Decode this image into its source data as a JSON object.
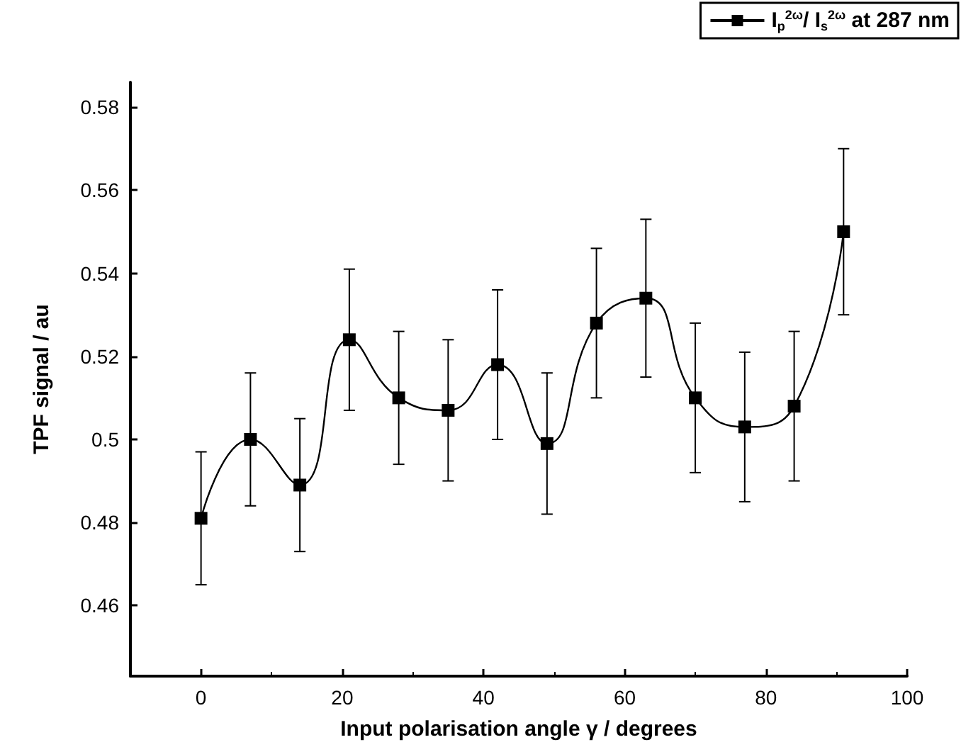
{
  "chart_data": {
    "type": "line",
    "xlabel": "Input polarisation angle γ / degrees",
    "ylabel": "TPF signal / au",
    "x": [
      0,
      7,
      14,
      21,
      28,
      35,
      42,
      49,
      56,
      63,
      70,
      77,
      84,
      91
    ],
    "series": [
      {
        "name": "I$_{p}$$^{2ω}$/ I$_{s}$$^{2ω}$ at 287 nm",
        "color": "#000000",
        "values": [
          0.481,
          0.5,
          0.489,
          0.524,
          0.51,
          0.507,
          0.518,
          0.499,
          0.528,
          0.534,
          0.51,
          0.503,
          0.508,
          0.55
        ],
        "errors": [
          0.016,
          0.016,
          0.016,
          0.017,
          0.016,
          0.017,
          0.018,
          0.017,
          0.018,
          0.019,
          0.018,
          0.018,
          0.018,
          0.02
        ]
      }
    ],
    "xlim": [
      -10,
      100
    ],
    "xticks": [
      0,
      20,
      40,
      60,
      80,
      100
    ],
    "ylim": [
      0.443,
      0.586
    ],
    "yticks": [
      0.46,
      0.48,
      0.5,
      0.52,
      0.54,
      0.56,
      0.58
    ],
    "marker": "square",
    "line_style": "solid",
    "legend": "top right",
    "grid": false
  }
}
